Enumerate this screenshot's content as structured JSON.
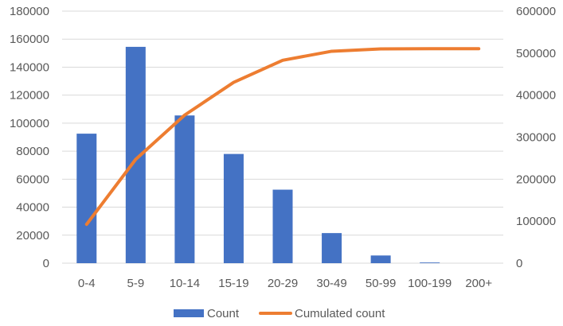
{
  "chart_data": {
    "type": "bar",
    "categories": [
      "0-4",
      "5-9",
      "10-14",
      "15-19",
      "20-29",
      "30-49",
      "50-99",
      "100-199",
      "200+"
    ],
    "series": [
      {
        "name": "Count",
        "type": "bar",
        "axis": "left",
        "color": "#4472C4",
        "values": [
          92500,
          154500,
          105500,
          78000,
          52500,
          21500,
          5500,
          500,
          100
        ]
      },
      {
        "name": "Cumulated count",
        "type": "line",
        "axis": "right",
        "color": "#ED7D31",
        "values": [
          92500,
          247000,
          352500,
          430500,
          483000,
          504500,
          510000,
          510500,
          510600
        ]
      }
    ],
    "y_left": {
      "min": 0,
      "max": 180000,
      "step": 20000
    },
    "y_right": {
      "min": 0,
      "max": 600000,
      "step": 100000
    },
    "grid": true,
    "legend_position": "bottom"
  }
}
